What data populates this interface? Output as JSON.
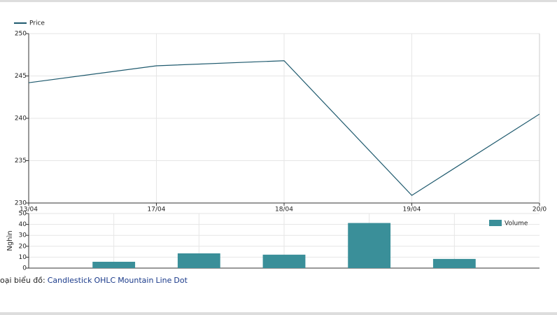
{
  "chart_data": [
    {
      "type": "line",
      "legend": "top-left",
      "categories": [
        "13/04",
        "17/04",
        "18/04",
        "19/04",
        "20/0"
      ],
      "series": [
        {
          "name": "Price",
          "color": "#1f5a6e",
          "values": [
            244.2,
            246.2,
            246.8,
            230.9,
            240.5
          ]
        }
      ],
      "ylim": [
        230,
        250
      ],
      "yticks": [
        230,
        235,
        240,
        245,
        250
      ],
      "grid": true
    },
    {
      "type": "bar",
      "legend": "top-right",
      "ylabel": "Nghìn",
      "categories": [
        null,
        null,
        null,
        null,
        null,
        null,
        null
      ],
      "series": [
        {
          "name": "Volume",
          "color": "#3a8f99",
          "values": [
            null,
            5.8,
            13.5,
            12.3,
            41.3,
            8.4,
            null
          ]
        }
      ],
      "ylim": [
        0,
        50
      ],
      "yticks": [
        0,
        10,
        20,
        30,
        40,
        50
      ],
      "grid": true
    }
  ],
  "chart_types": {
    "label": "oại biểu đồ:",
    "options": [
      "Candlestick",
      "OHLC",
      "Mountain",
      "Line",
      "Dot"
    ]
  }
}
